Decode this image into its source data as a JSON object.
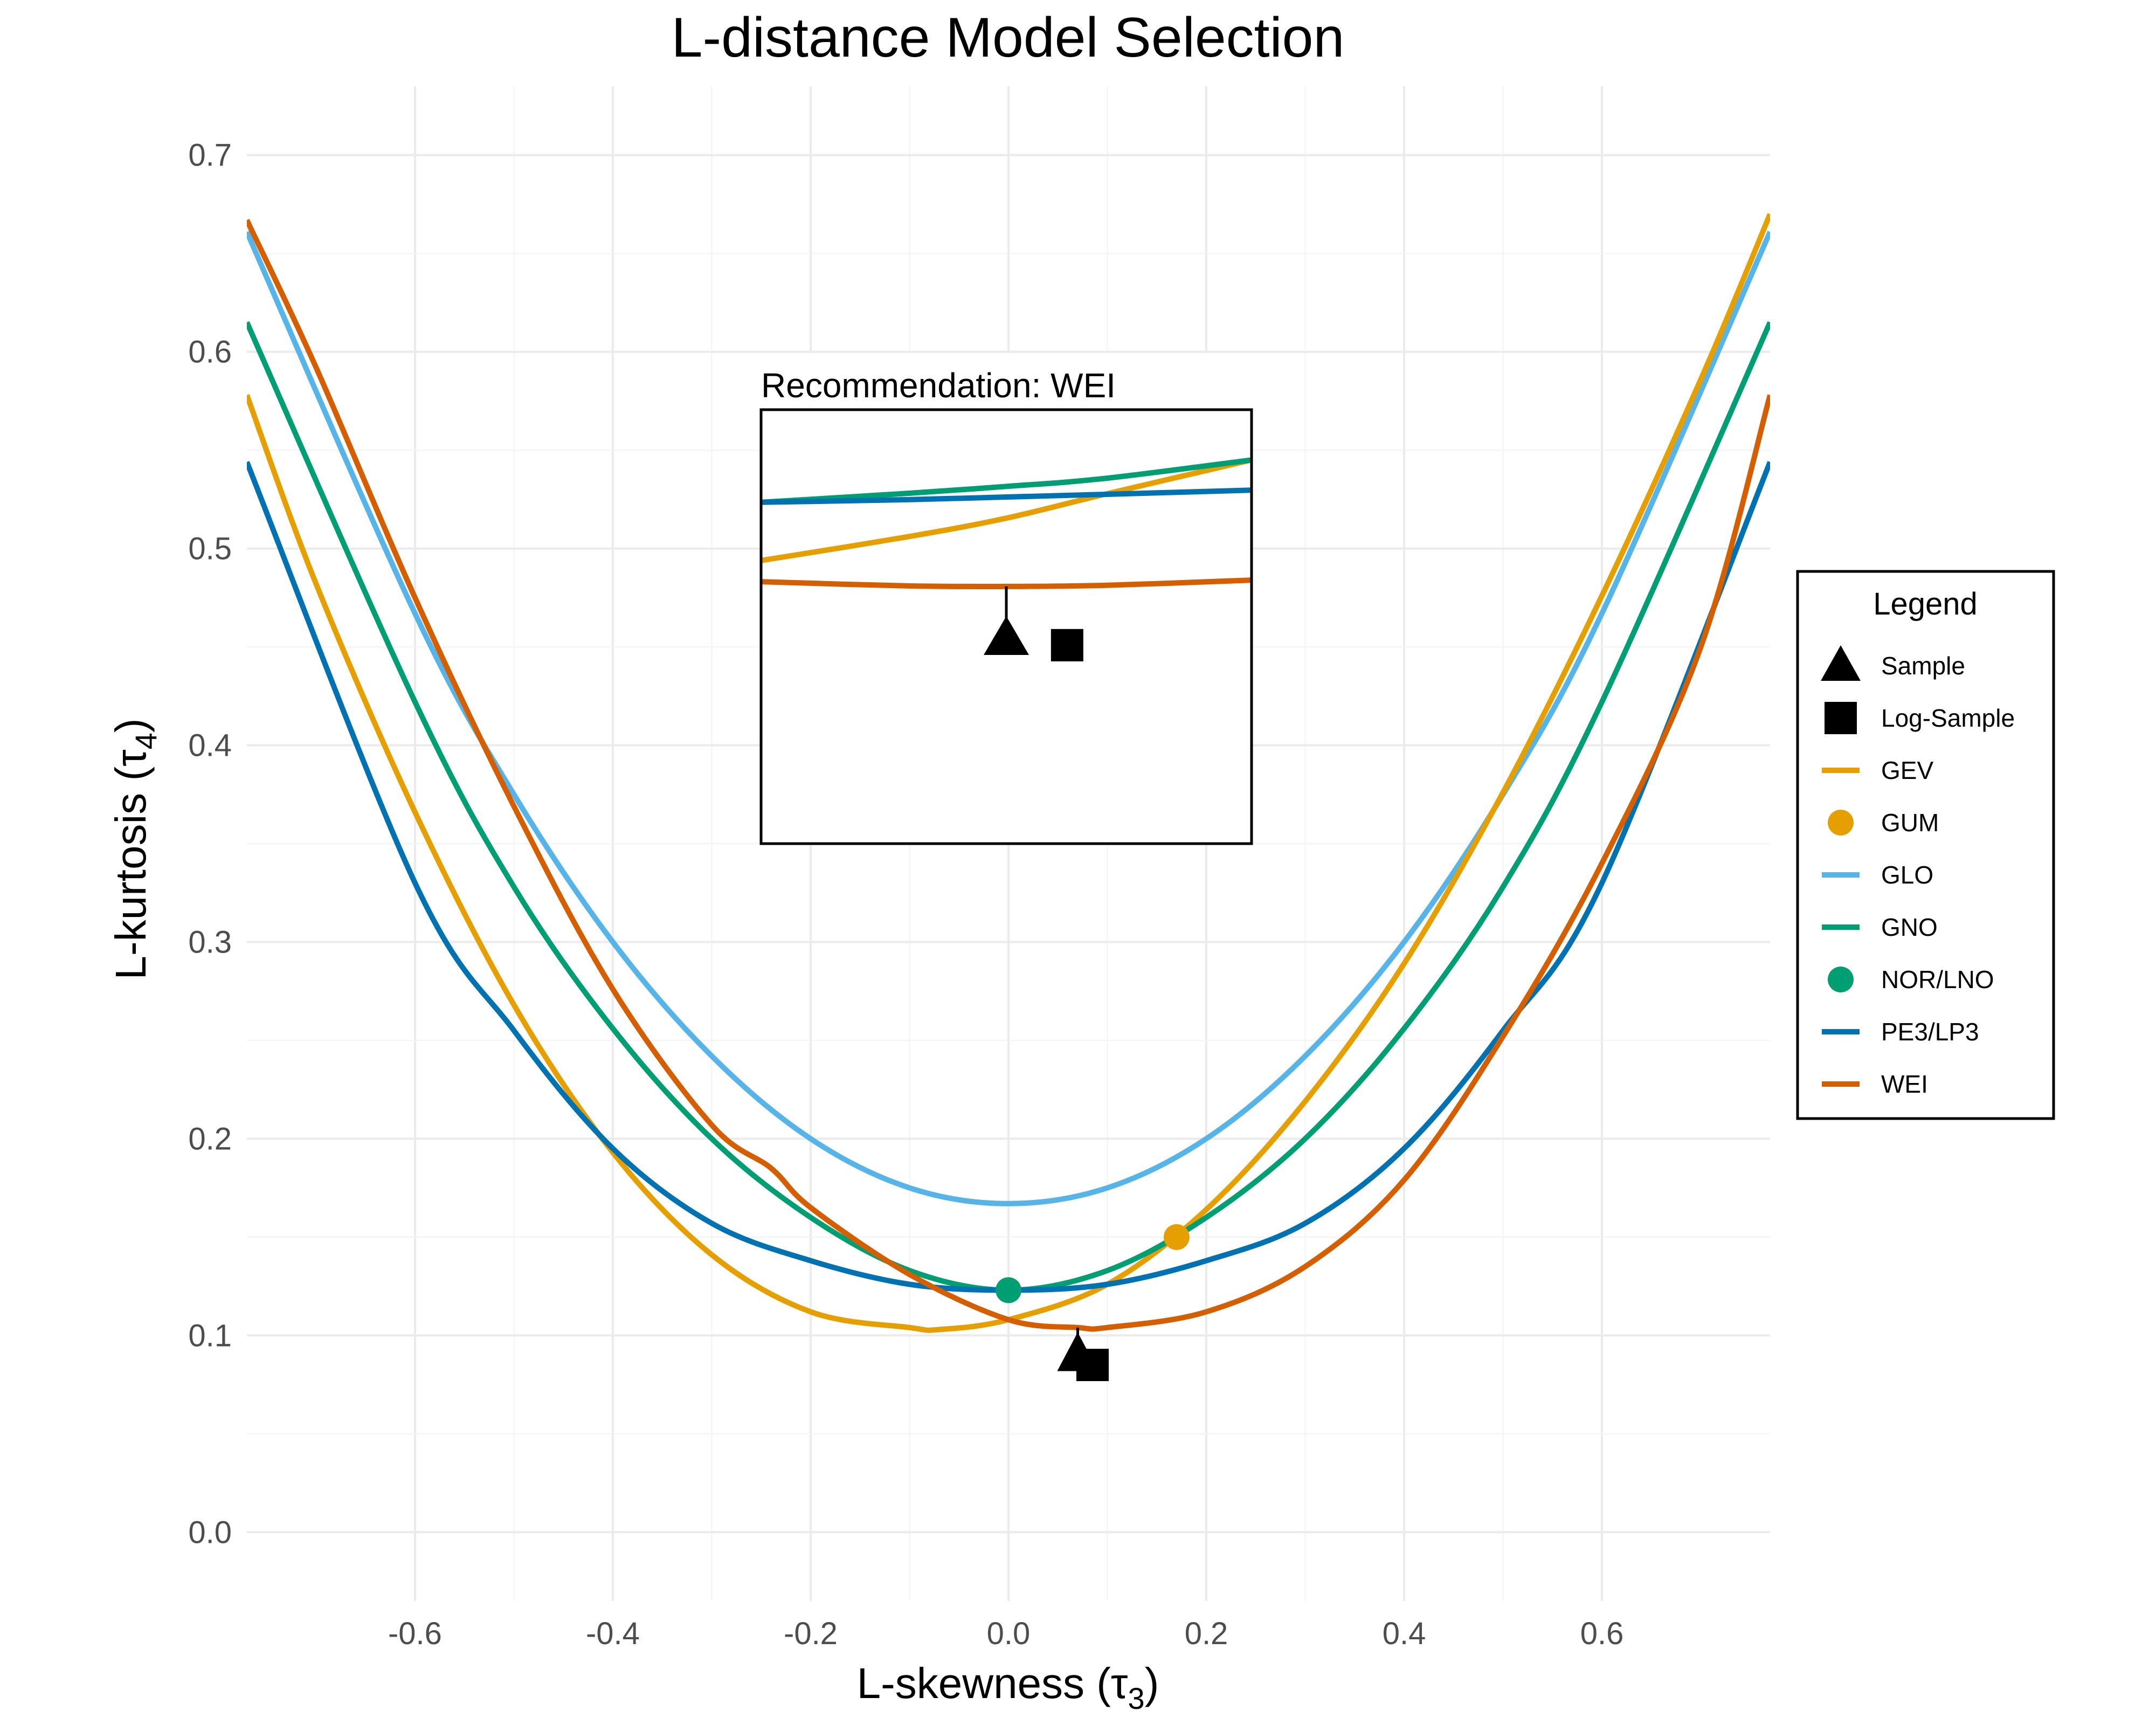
{
  "chart_data": {
    "type": "line",
    "title": "L-distance Model Selection",
    "xlabel": "L-skewness (τ",
    "xlabel_sub": "3",
    "xlabel_end": ")",
    "ylabel": "L-kurtosis (τ",
    "ylabel_sub": "4",
    "ylabel_end": ")",
    "xlim": [
      -0.77,
      0.77
    ],
    "ylim": [
      -0.035,
      0.735
    ],
    "x_ticks": [
      -0.6,
      -0.4,
      -0.2,
      0.0,
      0.2,
      0.4,
      0.6
    ],
    "x_tick_labels": [
      "-0.6",
      "-0.4",
      "-0.2",
      "0.0",
      "0.2",
      "0.4",
      "0.6"
    ],
    "y_ticks": [
      0.0,
      0.1,
      0.2,
      0.3,
      0.4,
      0.5,
      0.6,
      0.7
    ],
    "y_tick_labels": [
      "0.0",
      "0.1",
      "0.2",
      "0.3",
      "0.4",
      "0.5",
      "0.6",
      "0.7"
    ],
    "grid": true,
    "legend_position": "right",
    "series": [
      {
        "name": "GEV",
        "color": "#E69F00",
        "kind": "curve",
        "x": [
          -0.77,
          -0.7,
          -0.6,
          -0.5,
          -0.4,
          -0.3,
          -0.2,
          -0.1,
          -0.07,
          0.0,
          0.1,
          0.2,
          0.3,
          0.4,
          0.5,
          0.6,
          0.7,
          0.77
        ],
        "y": [
          0.578,
          0.482,
          0.366,
          0.268,
          0.193,
          0.141,
          0.112,
          0.104,
          0.103,
          0.108,
          0.126,
          0.164,
          0.219,
          0.289,
          0.376,
          0.476,
          0.586,
          0.67
        ]
      },
      {
        "name": "GLO",
        "color": "#56B4E9",
        "kind": "curve",
        "x": [
          -0.77,
          -0.6,
          -0.5,
          -0.4,
          -0.3,
          -0.2,
          -0.1,
          0.0,
          0.1,
          0.2,
          0.3,
          0.4,
          0.5,
          0.6,
          0.77
        ],
        "y": [
          0.661,
          0.467,
          0.375,
          0.3,
          0.242,
          0.2,
          0.175,
          0.167,
          0.175,
          0.2,
          0.242,
          0.3,
          0.375,
          0.467,
          0.661
        ]
      },
      {
        "name": "GNO",
        "color": "#009E73",
        "kind": "curve",
        "x": [
          -0.77,
          -0.6,
          -0.5,
          -0.4,
          -0.3,
          -0.2,
          -0.1,
          0.0,
          0.1,
          0.2,
          0.3,
          0.4,
          0.5,
          0.6,
          0.77
        ],
        "y": [
          0.615,
          0.422,
          0.328,
          0.256,
          0.2,
          0.16,
          0.133,
          0.123,
          0.133,
          0.16,
          0.2,
          0.256,
          0.328,
          0.422,
          0.615
        ]
      },
      {
        "name": "PE3/LP3",
        "color": "#0072B2",
        "kind": "curve",
        "x": [
          -0.77,
          -0.6,
          -0.5,
          -0.4,
          -0.3,
          -0.2,
          -0.1,
          0.0,
          0.1,
          0.2,
          0.3,
          0.4,
          0.5,
          0.6,
          0.77
        ],
        "y": [
          0.544,
          0.33,
          0.255,
          0.195,
          0.157,
          0.138,
          0.126,
          0.123,
          0.126,
          0.138,
          0.157,
          0.195,
          0.255,
          0.33,
          0.544
        ]
      },
      {
        "name": "WEI",
        "color": "#D55E00",
        "kind": "curve",
        "x": [
          -0.77,
          -0.7,
          -0.6,
          -0.5,
          -0.4,
          -0.3,
          -0.24,
          -0.2,
          -0.1,
          0.0,
          0.07,
          0.1,
          0.2,
          0.3,
          0.4,
          0.5,
          0.6,
          0.7,
          0.77
        ],
        "y": [
          0.667,
          0.592,
          0.475,
          0.369,
          0.276,
          0.207,
          0.185,
          0.165,
          0.131,
          0.108,
          0.104,
          0.104,
          0.112,
          0.135,
          0.179,
          0.252,
          0.34,
          0.45,
          0.578
        ]
      },
      {
        "name": "GUM",
        "color": "#E69F00",
        "kind": "point",
        "x": [
          0.17
        ],
        "y": [
          0.15
        ]
      },
      {
        "name": "NOR/LNO",
        "color": "#009E73",
        "kind": "point",
        "x": [
          0.0
        ],
        "y": [
          0.123
        ]
      },
      {
        "name": "Sample",
        "color": "#000000",
        "kind": "triangle",
        "x": [
          0.07
        ],
        "y": [
          0.089
        ]
      },
      {
        "name": "Log-Sample",
        "color": "#000000",
        "kind": "square",
        "x": [
          0.085
        ],
        "y": [
          0.085
        ]
      }
    ],
    "annotation": {
      "text": "Recommendation: WEI"
    }
  },
  "legend": {
    "title": "Legend",
    "items": [
      {
        "label": "Sample",
        "symbol": "triangle",
        "color": "#000000"
      },
      {
        "label": "Log-Sample",
        "symbol": "square",
        "color": "#000000"
      },
      {
        "label": "GEV",
        "symbol": "line",
        "color": "#E69F00"
      },
      {
        "label": "GUM",
        "symbol": "point",
        "color": "#E69F00"
      },
      {
        "label": "GLO",
        "symbol": "line",
        "color": "#56B4E9"
      },
      {
        "label": "GNO",
        "symbol": "line",
        "color": "#009E73"
      },
      {
        "label": "NOR/LNO",
        "symbol": "point",
        "color": "#009E73"
      },
      {
        "label": "PE3/LP3",
        "symbol": "line",
        "color": "#0072B2"
      },
      {
        "label": "WEI",
        "symbol": "line",
        "color": "#D55E00"
      }
    ]
  }
}
